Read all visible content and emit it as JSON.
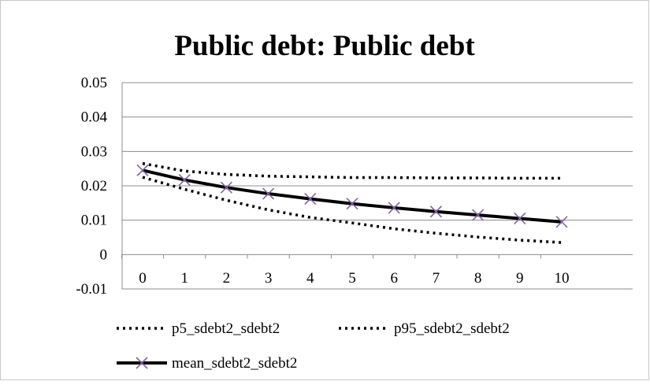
{
  "chart_data": {
    "type": "line",
    "title": "Public debt: Public debt",
    "xlabel": "",
    "ylabel": "",
    "x": [
      0,
      1,
      2,
      3,
      4,
      5,
      6,
      7,
      8,
      9,
      10
    ],
    "ylim": [
      -0.01,
      0.05
    ],
    "yticks": [
      "0.05",
      "0.04",
      "0.03",
      "0.02",
      "0.01",
      "0",
      "-0.01"
    ],
    "xticks": [
      "0",
      "1",
      "2",
      "3",
      "4",
      "5",
      "6",
      "7",
      "8",
      "9",
      "10"
    ],
    "grid": "horizontal",
    "legend_position": "bottom",
    "series": [
      {
        "name": "p5_sdebt2_sdebt2",
        "style": "dotted",
        "color": "#000000",
        "values": [
          0.0225,
          0.019,
          0.0158,
          0.013,
          0.0108,
          0.0092,
          0.0075,
          0.0062,
          0.0051,
          0.0042,
          0.0035
        ]
      },
      {
        "name": "p95_sdebt2_sdebt2",
        "style": "dotted",
        "color": "#000000",
        "values": [
          0.0265,
          0.0243,
          0.0233,
          0.0228,
          0.0226,
          0.0224,
          0.0224,
          0.0223,
          0.0223,
          0.0222,
          0.0222
        ]
      },
      {
        "name": "mean_sdebt2_sdebt2",
        "style": "solid",
        "color": "#000000",
        "marker": "x",
        "marker_color": "#8064a2",
        "values": [
          0.0245,
          0.0217,
          0.0195,
          0.0177,
          0.0162,
          0.0148,
          0.0136,
          0.0125,
          0.0115,
          0.0105,
          0.0095
        ]
      }
    ]
  }
}
